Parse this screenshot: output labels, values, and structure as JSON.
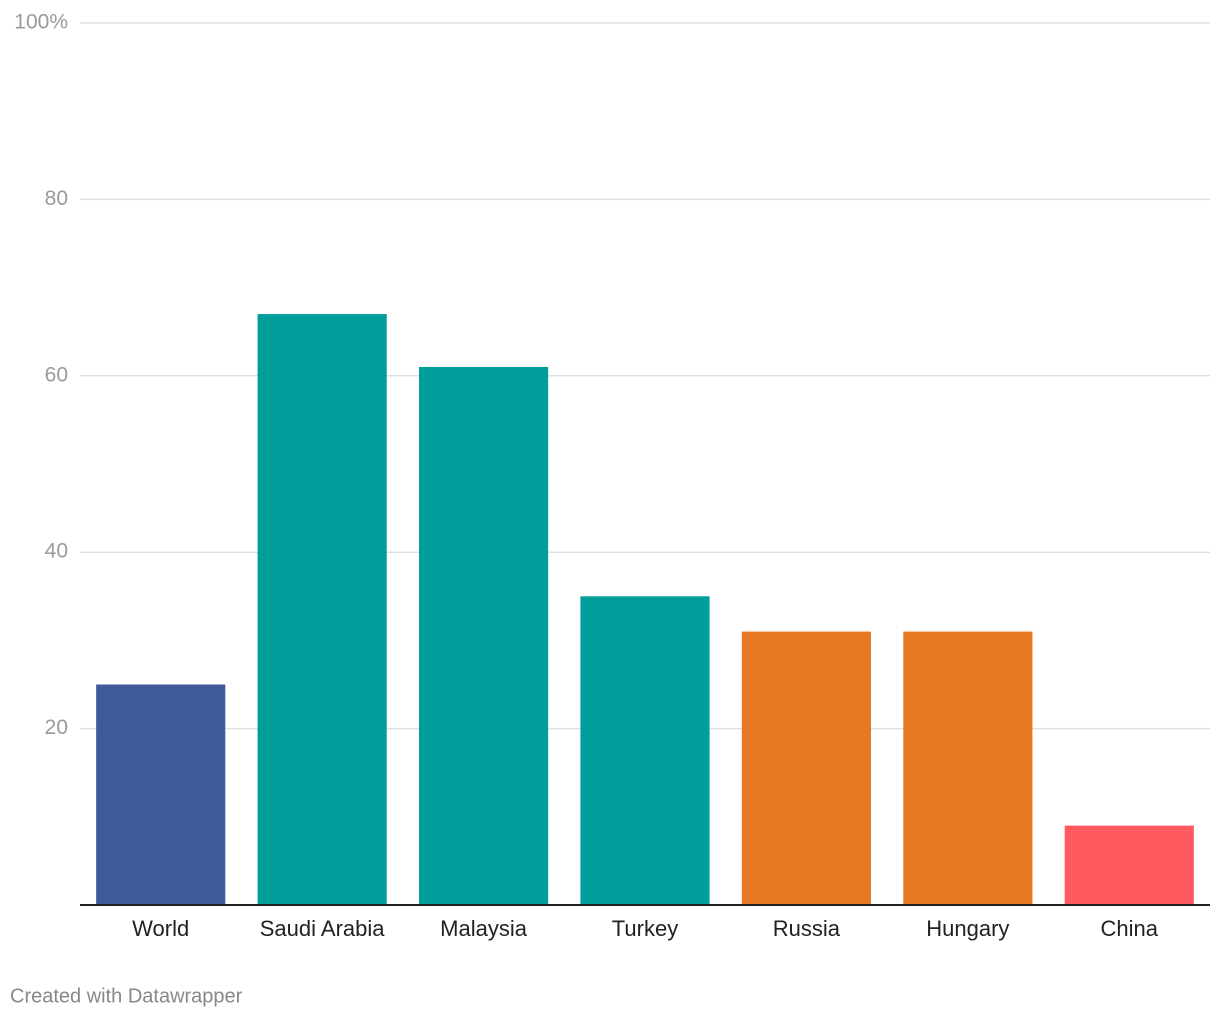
{
  "chart_data": {
    "type": "bar",
    "categories": [
      "World",
      "Saudi Arabia",
      "Malaysia",
      "Turkey",
      "Russia",
      "Hungary",
      "China"
    ],
    "values": [
      25,
      67,
      61,
      35,
      31,
      31,
      9
    ],
    "colors": [
      "#415a9a",
      "#009e9a",
      "#009e9a",
      "#009e9a",
      "#e67823",
      "#e67823",
      "#ff5a5f"
    ],
    "ylim": [
      0,
      100
    ],
    "yticks": [
      20,
      40,
      60,
      80,
      {
        "value": 100,
        "label": "100%"
      }
    ],
    "grid": true,
    "footer": "Created with Datawrapper"
  }
}
